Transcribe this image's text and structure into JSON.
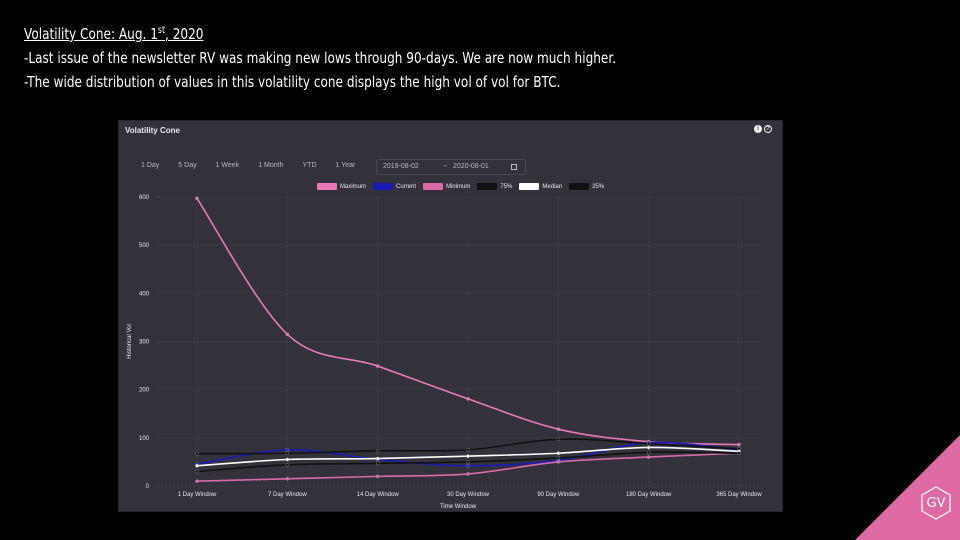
{
  "slide": {
    "title_main": "Volatility Cone: Aug. 1",
    "title_sup": "st",
    "title_end": ", 2020",
    "bullet1": "-Last issue of the newsletter RV was making new lows through 90-days. We are now much higher.",
    "bullet2": "-The wide distribution of values in this volatility cone displays the high vol of vol for BTC.",
    "logo_text": "GV",
    "accent": "#e06aa5"
  },
  "panel": {
    "title": "Volatility Cone",
    "info_icon": "info-icon",
    "help_icon": "help-icon",
    "help_glyph": "?",
    "info_glyph": "i",
    "ranges": [
      "1 Day",
      "5 Day",
      "1 Week",
      "1 Month",
      "YTD",
      "1 Year"
    ],
    "date_from": "2019-08-02",
    "date_sep": "→",
    "date_to": "2020-08-01",
    "calendar_icon": "calendar-icon"
  },
  "chart_data": {
    "type": "line",
    "xlabel": "Time Window",
    "ylabel": "Historical Vol",
    "categories": [
      "1 Day Window",
      "7 Day Window",
      "14 Day Window",
      "30 Day Window",
      "90 Day Window",
      "180 Day Window",
      "365 Day Window"
    ],
    "ylim": [
      0,
      600
    ],
    "yticks": [
      0,
      100,
      200,
      300,
      400,
      500,
      600
    ],
    "grid": true,
    "legend_position": "top",
    "series": [
      {
        "name": "Maximum",
        "color": "#e879b5",
        "values": [
          597,
          315,
          249,
          181,
          118,
          92,
          86
        ]
      },
      {
        "name": "Current",
        "color": "#1a1ab8",
        "values": [
          45,
          75,
          55,
          42,
          53,
          90,
          75
        ]
      },
      {
        "name": "Minimum",
        "color": "#d96aa8",
        "values": [
          10,
          15,
          20,
          25,
          50,
          60,
          68
        ]
      },
      {
        "name": "75%",
        "color": "#111111",
        "values": [
          67,
          68,
          73,
          75,
          97,
          88,
          77
        ]
      },
      {
        "name": "Median",
        "color": "#ffffff",
        "values": [
          42,
          55,
          57,
          62,
          68,
          80,
          72
        ]
      },
      {
        "name": "25%",
        "color": "#111111",
        "values": [
          30,
          44,
          47,
          50,
          58,
          70,
          68
        ]
      }
    ]
  }
}
